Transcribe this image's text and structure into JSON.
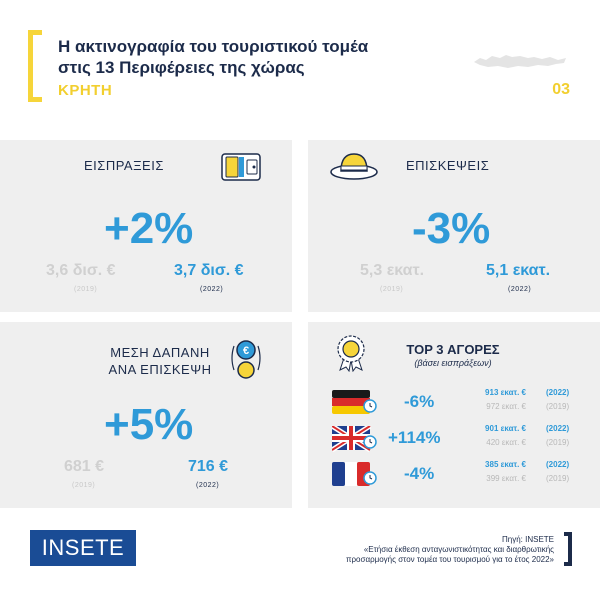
{
  "header": {
    "title_line1": "Η ακτινογραφία του τουριστικού τομέα",
    "title_line2": "στις 13 Περιφέρειες της χώρας",
    "region": "ΚΡΗΤΗ",
    "page_number": "03"
  },
  "receipts": {
    "label": "ΕΙΣΠΡΑΞΕΙΣ",
    "change": "+2%",
    "old_value": "3,6 δισ. €",
    "old_year": "(2019)",
    "new_value": "3,7 δισ. €",
    "new_year": "(2022)"
  },
  "visits": {
    "label": "ΕΠΙΣΚΕΨΕΙΣ",
    "change": "-3%",
    "old_value": "5,3 εκατ.",
    "old_year": "(2019)",
    "new_value": "5,1 εκατ.",
    "new_year": "(2022)"
  },
  "spend": {
    "label_line1": "ΜΕΣΗ ΔΑΠΑΝΗ",
    "label_line2": "ΑΝΑ ΕΠΙΣΚΕΨΗ",
    "change": "+5%",
    "old_value": "681 €",
    "old_year": "(2019)",
    "new_value": "716 €",
    "new_year": "(2022)"
  },
  "markets": {
    "title": "TOP 3 ΑΓΟΡΕΣ",
    "subtitle": "(βάσει εισπράξεων)",
    "items": [
      {
        "country": "germany",
        "change": "-6%",
        "new_value": "913 εκατ. €",
        "new_year": "(2022)",
        "old_value": "972 εκατ. €",
        "old_year": "(2019)"
      },
      {
        "country": "uk",
        "change": "+114%",
        "new_value": "901 εκατ. €",
        "new_year": "(2022)",
        "old_value": "420 εκατ. €",
        "old_year": "(2019)"
      },
      {
        "country": "france",
        "change": "-4%",
        "new_value": "385 εκατ. €",
        "new_year": "(2022)",
        "old_value": "399 εκατ. €",
        "old_year": "(2019)"
      }
    ]
  },
  "footer": {
    "logo": "INSETE",
    "source_label": "Πηγή: INSETE",
    "source_line1": "«Ετήσια έκθεση ανταγωνιστικότητας και διαρθρωτικής",
    "source_line2": "προσαρμογής στον τομέα του τουρισμού για το έτος 2022»"
  },
  "colors": {
    "accent_blue": "#2f9ad8",
    "accent_yellow": "#f6d53a",
    "navy": "#1c2b4a",
    "panel_gray": "#efefef"
  }
}
